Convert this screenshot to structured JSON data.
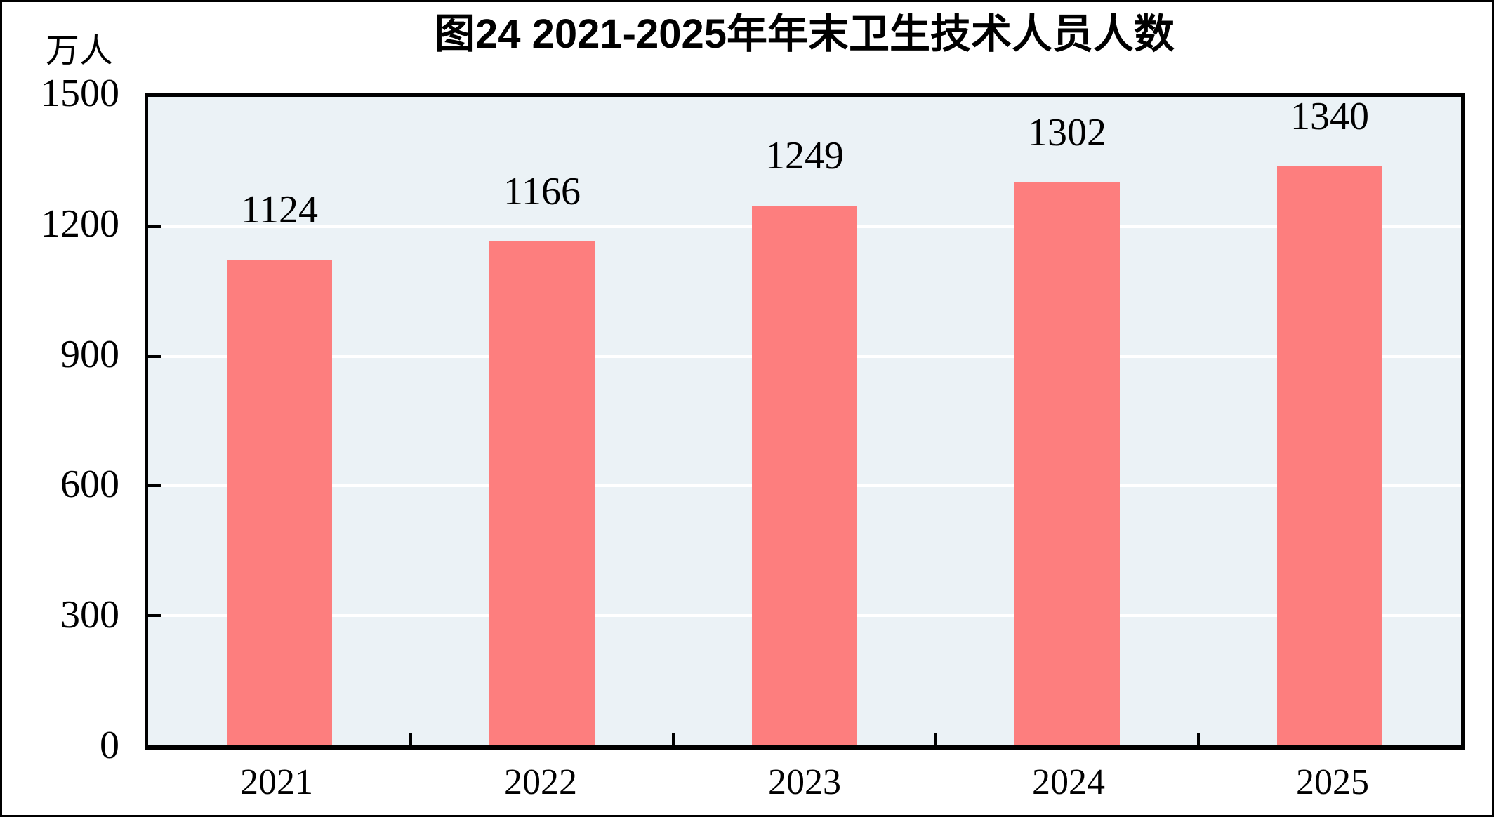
{
  "chart_data": {
    "type": "bar",
    "title": "图24  2021-2025年年末卫生技术人员人数",
    "unit_label": "万人",
    "categories": [
      "2021",
      "2022",
      "2023",
      "2024",
      "2025"
    ],
    "values": [
      1124,
      1166,
      1249,
      1302,
      1340
    ],
    "data_labels": [
      "1124",
      "1166",
      "1249",
      "1302",
      "1340"
    ],
    "xlabel": "",
    "ylabel": "万人",
    "ylim": [
      0,
      1500
    ],
    "yticks": [
      0,
      300,
      600,
      900,
      1200,
      1500
    ],
    "gridlines_at": [
      300,
      600,
      900,
      1200
    ],
    "grid": true,
    "legend_position": "none",
    "colors": {
      "bar": "#fd7e7e",
      "plot_background": "#ebf2f6",
      "gridline": "#ffffff",
      "axis": "#000000",
      "text": "#000000",
      "frame_border": "#000000",
      "page_background": "#ffffff"
    }
  }
}
